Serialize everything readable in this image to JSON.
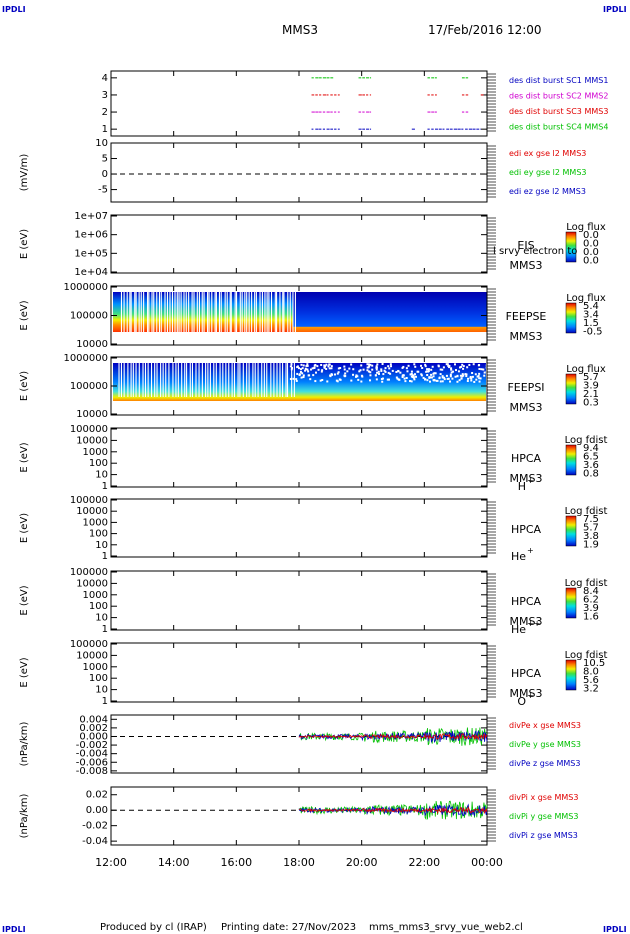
{
  "corner_labels": {
    "tl": "IPDLI",
    "tr": "IPDLI",
    "bl": "IPDLI",
    "br": "IPDLI"
  },
  "header": {
    "spacecraft": "MMS3",
    "date": "17/Feb/2016 12:00"
  },
  "footer": {
    "produced_by": "Produced by cl (IRAP)",
    "printing_date": "Printing date: 27/Nov/2023",
    "script_name": "mms_mms3_srvy_vue_web2.cl"
  },
  "colors": {
    "red": "#e00000",
    "green": "#00c000",
    "blue": "#0000c0",
    "magenta": "#d000d0"
  },
  "chart_data": [
    {
      "id": "panel-burst",
      "type": "line",
      "y_ticks": [
        "1",
        "2",
        "3",
        "4"
      ],
      "ylim": [
        0.6,
        4.4
      ],
      "series": [
        {
          "name": "des dist burst SC1 MMS1",
          "color": "#0000c0",
          "y": 1,
          "segments": [
            [
              18.4,
              19.3
            ],
            [
              19.9,
              20.3
            ],
            [
              21.6,
              21.7
            ],
            [
              22.1,
              23.8
            ]
          ]
        },
        {
          "name": "des dist burst SC2 MMS2",
          "color": "#d000d0",
          "y": 2,
          "segments": [
            [
              18.4,
              19.3
            ],
            [
              19.9,
              20.3
            ],
            [
              22.1,
              22.4
            ],
            [
              23.2,
              23.4
            ]
          ]
        },
        {
          "name": "des dist burst SC3 MMS3",
          "color": "#e00000",
          "y": 3,
          "segments": [
            [
              18.4,
              19.3
            ],
            [
              19.9,
              20.3
            ],
            [
              22.1,
              22.4
            ],
            [
              23.2,
              23.4
            ],
            [
              23.8,
              23.9
            ]
          ]
        },
        {
          "name": "des dist burst SC4 MMS4",
          "color": "#00c000",
          "y": 4,
          "segments": [
            [
              18.4,
              19.1
            ],
            [
              19.9,
              20.3
            ],
            [
              22.1,
              22.4
            ],
            [
              23.2,
              23.4
            ]
          ]
        }
      ]
    },
    {
      "id": "panel-edi",
      "type": "line",
      "ylabel": "(mV/m)",
      "y_ticks": [
        "-5",
        "0",
        "5",
        "10"
      ],
      "ylim": [
        -9,
        10
      ],
      "zero_line": true,
      "series": [
        {
          "name": "edi ex gse l2 MMS3",
          "color": "#e00000"
        },
        {
          "name": "edi ey gse l2 MMS3",
          "color": "#00c000"
        },
        {
          "name": "edi ez gse l2 MMS3",
          "color": "#0000c0"
        }
      ]
    },
    {
      "id": "panel-eis",
      "type": "heatmap",
      "ylabel": "E (eV)",
      "y_ticks": [
        "1e+04",
        "1e+05",
        "1e+06",
        "1e+07"
      ],
      "ylog": [
        4,
        7
      ],
      "instrument": "EIS",
      "spacecraft_label": "MMS3",
      "overlay_text": "l srvy electron to",
      "colorbar": {
        "title": "Log flux",
        "ticks": [
          "0.0",
          "0.0",
          "0.0",
          "0.0"
        ]
      }
    },
    {
      "id": "panel-feepse",
      "type": "heatmap",
      "ylabel": "E (eV)",
      "y_ticks": [
        "10000",
        "100000",
        "1000000"
      ],
      "ylog": [
        4,
        6
      ],
      "instrument": "FEEPSE",
      "spacecraft_label": "MMS3",
      "colorbar": {
        "title": "Log flux",
        "ticks": [
          "5.4",
          "3.4",
          "1.5",
          "-0.5"
        ]
      }
    },
    {
      "id": "panel-feepsi",
      "type": "heatmap",
      "ylabel": "E (eV)",
      "y_ticks": [
        "10000",
        "100000",
        "1000000"
      ],
      "ylog": [
        4,
        6
      ],
      "instrument": "FEEPSI",
      "spacecraft_label": "MMS3",
      "colorbar": {
        "title": "Log flux",
        "ticks": [
          "5.7",
          "3.9",
          "2.1",
          "0.3"
        ]
      }
    },
    {
      "id": "panel-hpca-h",
      "type": "heatmap",
      "ylabel": "E (eV)",
      "y_ticks": [
        "1",
        "10",
        "100",
        "1000",
        "10000",
        "100000"
      ],
      "ylog": [
        0,
        5
      ],
      "instrument": "HPCA",
      "spacecraft_label": "MMS3",
      "species": "H",
      "species_sup": "+",
      "colorbar": {
        "title": "Log fdist",
        "ticks": [
          "9.4",
          "6.5",
          "3.6",
          "0.8"
        ]
      }
    },
    {
      "id": "panel-hpca-he",
      "type": "heatmap",
      "ylabel": "E (eV)",
      "y_ticks": [
        "1",
        "10",
        "100",
        "1000",
        "10000",
        "100000"
      ],
      "ylog": [
        0,
        5
      ],
      "instrument": "HPCA",
      "species": "He",
      "species_sup": "+",
      "colorbar": {
        "title": "Log fdist",
        "ticks": [
          "7.5",
          "5.7",
          "3.8",
          "1.9"
        ]
      }
    },
    {
      "id": "panel-hpca-hepp",
      "type": "heatmap",
      "ylabel": "E (eV)",
      "y_ticks": [
        "1",
        "10",
        "100",
        "1000",
        "10000",
        "100000"
      ],
      "ylog": [
        0,
        5
      ],
      "instrument": "HPCA",
      "spacecraft_label": "MMS3",
      "species": "He",
      "species_sup": "++",
      "colorbar": {
        "title": "Log fdist",
        "ticks": [
          "8.4",
          "6.2",
          "3.9",
          "1.6"
        ]
      }
    },
    {
      "id": "panel-hpca-o",
      "type": "heatmap",
      "ylabel": "E (eV)",
      "y_ticks": [
        "1",
        "10",
        "100",
        "1000",
        "10000",
        "100000"
      ],
      "ylog": [
        0,
        5
      ],
      "instrument": "HPCA",
      "spacecraft_label": "MMS3",
      "species": "O",
      "species_sup": "+",
      "colorbar": {
        "title": "Log fdist",
        "ticks": [
          "10.5",
          "8.0",
          "5.6",
          "3.2"
        ]
      }
    },
    {
      "id": "panel-divpe",
      "type": "line",
      "ylabel": "(nPa/km)",
      "y_ticks": [
        "-0.008",
        "-0.006",
        "-0.004",
        "-0.002",
        "0.000",
        "0.002",
        "0.004"
      ],
      "ylim": [
        -0.0085,
        0.005
      ],
      "zero_line": true,
      "series": [
        {
          "name": "divPe x gse MMS3",
          "color": "#e00000"
        },
        {
          "name": "divPe y gse MMS3",
          "color": "#00c000"
        },
        {
          "name": "divPe z gse MMS3",
          "color": "#0000c0"
        }
      ]
    },
    {
      "id": "panel-divpi",
      "type": "line",
      "ylabel": "(nPa/km)",
      "y_ticks": [
        "-0.04",
        "-0.02",
        "0.00",
        "0.02"
      ],
      "ylim": [
        -0.045,
        0.03
      ],
      "zero_line": true,
      "series": [
        {
          "name": "divPi x gse MMS3",
          "color": "#e00000"
        },
        {
          "name": "divPi y gse MMS3",
          "color": "#00c000"
        },
        {
          "name": "divPi z gse MMS3",
          "color": "#0000c0"
        }
      ]
    }
  ],
  "x_axis": {
    "ticks": [
      "12:00",
      "14:00",
      "16:00",
      "18:00",
      "20:00",
      "22:00",
      "00:00"
    ],
    "xlim": [
      12,
      24
    ]
  }
}
